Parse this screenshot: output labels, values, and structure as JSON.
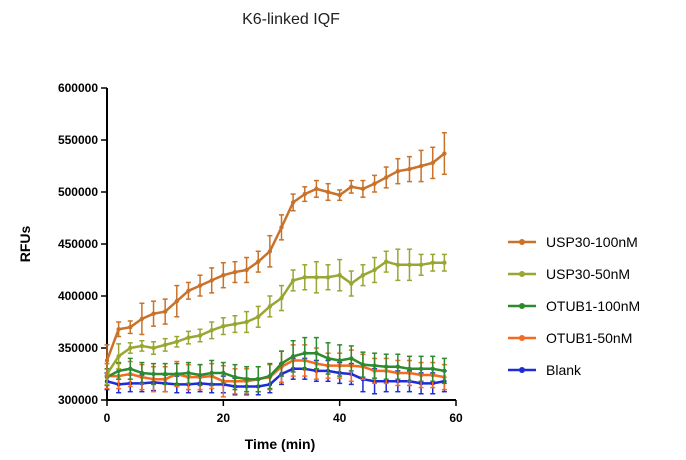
{
  "chart_data": {
    "type": "line",
    "title": "K6-linked IQF",
    "xlabel": "Time (min)",
    "ylabel": "RFUs",
    "xlim": [
      0,
      60
    ],
    "ylim": [
      300000,
      600000
    ],
    "x_ticks": [
      0,
      20,
      40,
      60
    ],
    "x_tick_labels": [
      "0",
      "20",
      "40",
      "60"
    ],
    "y_ticks": [
      300000,
      350000,
      400000,
      450000,
      500000,
      550000,
      600000
    ],
    "y_tick_labels": [
      "300000",
      "350000",
      "400000",
      "450000",
      "500000",
      "550000",
      "600000"
    ],
    "grid": false,
    "legend_position": "right",
    "x": [
      0,
      2,
      4,
      6,
      8,
      10,
      12,
      14,
      16,
      18,
      20,
      22,
      24,
      26,
      28,
      30,
      32,
      34,
      36,
      38,
      40,
      42,
      44,
      46,
      48,
      50,
      52,
      54,
      56,
      58
    ],
    "series": [
      {
        "name": "USP30-100nM",
        "color": "#c8722a",
        "values": [
          338000,
          368000,
          370000,
          378000,
          383000,
          385000,
          395000,
          405000,
          410000,
          415000,
          420000,
          423000,
          425000,
          433000,
          443000,
          466000,
          490000,
          498000,
          503000,
          500000,
          497000,
          505000,
          503000,
          508000,
          514000,
          520000,
          522000,
          525000,
          528000,
          537000
        ],
        "errors": [
          15000,
          7000,
          6000,
          15000,
          12000,
          12000,
          15000,
          8000,
          10000,
          12000,
          12000,
          10000,
          12000,
          10000,
          15000,
          12000,
          8000,
          7000,
          8000,
          8000,
          5000,
          6000,
          8000,
          8000,
          10000,
          12000,
          12000,
          15000,
          15000,
          20000
        ]
      },
      {
        "name": "USP30-50nM",
        "color": "#9aa632",
        "values": [
          325000,
          342000,
          350000,
          352000,
          350000,
          353000,
          356000,
          360000,
          362000,
          367000,
          371000,
          373000,
          375000,
          380000,
          390000,
          398000,
          415000,
          418000,
          418000,
          418000,
          420000,
          412000,
          420000,
          425000,
          433000,
          430000,
          430000,
          430000,
          432000,
          432000
        ],
        "errors": [
          10000,
          12000,
          5000,
          5000,
          6000,
          6000,
          5000,
          6000,
          6000,
          8000,
          8000,
          8000,
          10000,
          10000,
          10000,
          12000,
          10000,
          12000,
          15000,
          12000,
          15000,
          12000,
          10000,
          12000,
          10000,
          15000,
          15000,
          10000,
          8000,
          8000
        ]
      },
      {
        "name": "OTUB1-100nM",
        "color": "#2e8a2e",
        "values": [
          322000,
          328000,
          330000,
          326000,
          325000,
          325000,
          325000,
          326000,
          324000,
          326000,
          326000,
          322000,
          320000,
          320000,
          323000,
          335000,
          342000,
          345000,
          345000,
          340000,
          338000,
          340000,
          334000,
          333000,
          332000,
          332000,
          330000,
          330000,
          330000,
          328000
        ],
        "errors": [
          8000,
          8000,
          10000,
          10000,
          10000,
          10000,
          10000,
          10000,
          10000,
          12000,
          10000,
          12000,
          12000,
          12000,
          12000,
          12000,
          15000,
          15000,
          15000,
          15000,
          15000,
          12000,
          12000,
          12000,
          12000,
          12000,
          12000,
          12000,
          12000,
          12000
        ]
      },
      {
        "name": "OTUB1-50nM",
        "color": "#f26b21",
        "values": [
          323000,
          323000,
          325000,
          322000,
          320000,
          320000,
          325000,
          322000,
          322000,
          323000,
          318000,
          318000,
          318000,
          320000,
          322000,
          332000,
          338000,
          338000,
          335000,
          333000,
          333000,
          333000,
          332000,
          328000,
          328000,
          326000,
          326000,
          324000,
          324000,
          322000
        ],
        "errors": [
          12000,
          12000,
          12000,
          12000,
          12000,
          12000,
          12000,
          12000,
          12000,
          12000,
          15000,
          12000,
          12000,
          12000,
          12000,
          15000,
          15000,
          15000,
          15000,
          12000,
          12000,
          15000,
          12000,
          12000,
          12000,
          12000,
          12000,
          12000,
          12000,
          12000
        ]
      },
      {
        "name": "Blank",
        "color": "#1f2bd6",
        "values": [
          318000,
          315000,
          316000,
          316000,
          317000,
          316000,
          315000,
          315000,
          316000,
          315000,
          315000,
          313000,
          313000,
          313000,
          315000,
          325000,
          330000,
          330000,
          328000,
          328000,
          326000,
          325000,
          320000,
          318000,
          318000,
          318000,
          318000,
          316000,
          316000,
          318000
        ],
        "errors": [
          8000,
          8000,
          8000,
          8000,
          8000,
          8000,
          8000,
          8000,
          8000,
          8000,
          8000,
          8000,
          8000,
          8000,
          8000,
          10000,
          10000,
          10000,
          10000,
          10000,
          10000,
          10000,
          12000,
          12000,
          10000,
          10000,
          10000,
          10000,
          10000,
          10000
        ]
      }
    ]
  }
}
